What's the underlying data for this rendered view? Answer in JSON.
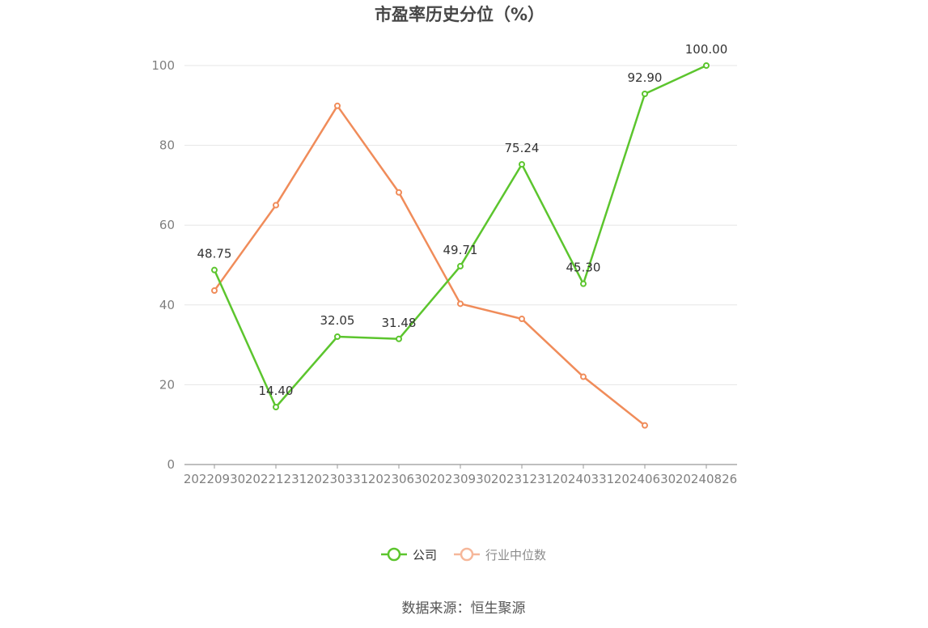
{
  "chart_data": {
    "type": "line",
    "title": "市盈率历史分位（%）",
    "xlabel": "",
    "ylabel": "",
    "categories": [
      "20220930",
      "20221231",
      "20230331",
      "20230630",
      "20230930",
      "20231231",
      "20240331",
      "20240630",
      "20240826"
    ],
    "ylim": [
      0,
      100
    ],
    "yticks": [
      0,
      20,
      40,
      60,
      80,
      100
    ],
    "grid": true,
    "legend_position": "bottom-center",
    "series": [
      {
        "name": "公司",
        "color": "#5cc52e",
        "values": [
          48.75,
          14.4,
          32.05,
          31.48,
          49.71,
          75.24,
          45.3,
          92.9,
          100.0
        ],
        "labels": [
          "48.75",
          "14.40",
          "32.05",
          "31.48",
          "49.71",
          "75.24",
          "45.30",
          "92.90",
          "100.00"
        ]
      },
      {
        "name": "行业中位数",
        "color": "#f08c5a",
        "legend_color": "#f6b79a",
        "values": [
          43.6,
          65.0,
          89.9,
          68.2,
          40.3,
          36.5,
          22.0,
          9.8,
          null
        ]
      }
    ]
  },
  "source": "数据来源：恒生聚源"
}
